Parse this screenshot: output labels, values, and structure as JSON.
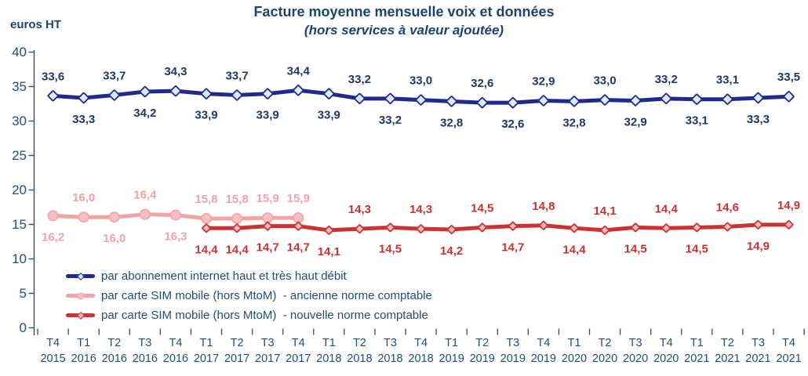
{
  "colors": {
    "background": "#ffffff",
    "title": "#1b4474",
    "axis_text": "#1f4e79",
    "axis_line": "#3d4a66"
  },
  "chart_data": {
    "type": "line",
    "title": "Facture moyenne mensuelle voix et données",
    "subtitle": "(hors services à valeur ajoutée)",
    "y_unit_label": "euros HT",
    "ylim": [
      0,
      40
    ],
    "y_ticks": [
      0,
      5,
      10,
      15,
      20,
      25,
      30,
      35,
      40
    ],
    "grid": false,
    "legend_position": "inside-bottom-left",
    "categories": [
      {
        "q": "T4",
        "year": "2015"
      },
      {
        "q": "T1",
        "year": "2016"
      },
      {
        "q": "T2",
        "year": "2016"
      },
      {
        "q": "T3",
        "year": "2016"
      },
      {
        "q": "T4",
        "year": "2016"
      },
      {
        "q": "T1",
        "year": "2017"
      },
      {
        "q": "T2",
        "year": "2017"
      },
      {
        "q": "T3",
        "year": "2017"
      },
      {
        "q": "T4",
        "year": "2017"
      },
      {
        "q": "T1",
        "year": "2018"
      },
      {
        "q": "T2",
        "year": "2018"
      },
      {
        "q": "T3",
        "year": "2018"
      },
      {
        "q": "T4",
        "year": "2018"
      },
      {
        "q": "T1",
        "year": "2019"
      },
      {
        "q": "T2",
        "year": "2019"
      },
      {
        "q": "T3",
        "year": "2019"
      },
      {
        "q": "T4",
        "year": "2019"
      },
      {
        "q": "T1",
        "year": "2020"
      },
      {
        "q": "T2",
        "year": "2020"
      },
      {
        "q": "T3",
        "year": "2020"
      },
      {
        "q": "T4",
        "year": "2020"
      },
      {
        "q": "T1",
        "year": "2021"
      },
      {
        "q": "T2",
        "year": "2021"
      },
      {
        "q": "T3",
        "year": "2021"
      },
      {
        "q": "T4",
        "year": "2021"
      }
    ],
    "series": [
      {
        "name": "par abonnement internet haut et très haut débit",
        "color": "#20298c",
        "marker": "diamond",
        "marker_fill": "#d8edf9",
        "label_color": "#1f3864",
        "start_index": 0,
        "values": [
          33.6,
          33.3,
          33.7,
          34.2,
          34.3,
          33.9,
          33.7,
          33.9,
          34.4,
          33.9,
          33.2,
          33.2,
          33.0,
          32.8,
          32.6,
          32.6,
          32.9,
          32.8,
          33.0,
          32.9,
          33.2,
          33.1,
          33.1,
          33.3,
          33.5
        ],
        "value_labels": [
          "33,6",
          "33,3",
          "33,7",
          "34,2",
          "34,3",
          "33,9",
          "33,7",
          "33,9",
          "34,4",
          "33,9",
          "33,2",
          "33,2",
          "33,0",
          "32,8",
          "32,6",
          "32,6",
          "32,9",
          "32,8",
          "33,0",
          "32,9",
          "33,2",
          "33,1",
          "33,1",
          "33,3",
          "33,5"
        ],
        "label_positions": [
          "above",
          "below",
          "above",
          "below",
          "above",
          "below",
          "above",
          "below",
          "above",
          "below",
          "above",
          "below",
          "above",
          "below",
          "above",
          "below",
          "above",
          "below",
          "above",
          "below",
          "above",
          "below",
          "above",
          "below",
          "above"
        ]
      },
      {
        "name": "par carte SIM mobile (hors MtoM)  - ancienne norme comptable",
        "color": "#f2a3a3",
        "marker": "circle",
        "marker_fill": "#f7bfbf",
        "label_color": "#f2a3a3",
        "start_index": 0,
        "values": [
          16.2,
          16.0,
          16.0,
          16.4,
          16.3,
          15.8,
          15.8,
          15.9,
          15.9
        ],
        "value_labels": [
          "16,2",
          "16,0",
          "16,0",
          "16,4",
          "16,3",
          "15,8",
          "15,8",
          "15,9",
          "15,9"
        ],
        "label_positions": [
          "below",
          "above",
          "below",
          "above",
          "below",
          "above",
          "above",
          "above",
          "above"
        ]
      },
      {
        "name": "par carte SIM mobile (hors MtoM)  - nouvelle norme comptable",
        "color": "#cd3232",
        "marker": "diamond",
        "marker_fill": "#f4baba",
        "label_color": "#cd3232",
        "start_index": 5,
        "values": [
          14.4,
          14.4,
          14.7,
          14.7,
          14.1,
          14.3,
          14.5,
          14.3,
          14.2,
          14.5,
          14.7,
          14.8,
          14.4,
          14.1,
          14.5,
          14.4,
          14.5,
          14.6,
          14.9,
          14.9
        ],
        "value_labels": [
          "14,4",
          "14,4",
          "14,7",
          "14,7",
          "14,1",
          "14,3",
          "14,5",
          "14,3",
          "14,2",
          "14,5",
          "14,7",
          "14,8",
          "14,4",
          "14,1",
          "14,5",
          "14,4",
          "14,5",
          "14,6",
          "14,9",
          "14,9"
        ],
        "label_positions": [
          "below",
          "below",
          "below",
          "below",
          "below",
          "above",
          "below",
          "above",
          "below",
          "above",
          "below",
          "above",
          "below",
          "above",
          "below",
          "above",
          "below",
          "above",
          "below",
          "above"
        ]
      }
    ]
  }
}
